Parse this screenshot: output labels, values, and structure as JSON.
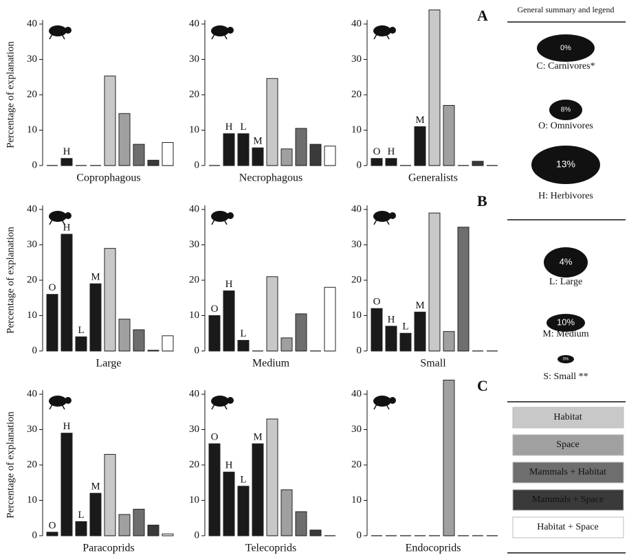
{
  "chart_data": [
    {
      "type": "bar",
      "title": "Coprophagous",
      "ylabel": "Percentage of explanation",
      "categories": [
        null,
        "H",
        null,
        null,
        null,
        null,
        null,
        null,
        null
      ],
      "values": [
        0,
        2,
        0,
        0,
        25.3,
        14.7,
        6,
        1.5,
        6.5
      ],
      "colors": [
        "#1a1a1a",
        "#1a1a1a",
        "#1a1a1a",
        "#1a1a1a",
        "#c8c8c8",
        "#a0a0a0",
        "#6e6e6e",
        "#3a3a3a",
        "#ffffff"
      ],
      "ylim": [
        0,
        45
      ],
      "yticks": [
        0,
        10,
        20,
        30,
        40
      ]
    },
    {
      "type": "bar",
      "title": "Necrophagous",
      "categories": [
        null,
        "H",
        "L",
        "M",
        null,
        null,
        null,
        null,
        null
      ],
      "values": [
        0,
        9,
        9,
        5,
        24.6,
        4.7,
        10.5,
        6,
        5.5
      ],
      "colors": [
        "#1a1a1a",
        "#1a1a1a",
        "#1a1a1a",
        "#1a1a1a",
        "#c8c8c8",
        "#a0a0a0",
        "#6e6e6e",
        "#3a3a3a",
        "#ffffff"
      ],
      "ylim": [
        0,
        45
      ],
      "yticks": [
        0,
        10,
        20,
        30,
        40
      ]
    },
    {
      "type": "bar",
      "title": "Generalists",
      "panel_label": "A",
      "categories": [
        "O",
        "H",
        null,
        "M",
        null,
        null,
        null,
        null,
        null
      ],
      "values": [
        2,
        2,
        0,
        11,
        44,
        17,
        0,
        1.2,
        0
      ],
      "colors": [
        "#1a1a1a",
        "#1a1a1a",
        "#1a1a1a",
        "#1a1a1a",
        "#c8c8c8",
        "#a0a0a0",
        "#6e6e6e",
        "#3a3a3a",
        "#ffffff"
      ],
      "ylim": [
        0,
        45
      ],
      "yticks": [
        0,
        10,
        20,
        30,
        40
      ]
    },
    {
      "type": "bar",
      "title": "Large",
      "ylabel": "Percentage of explanation",
      "categories": [
        "O",
        "H",
        "L",
        "M",
        null,
        null,
        null,
        null,
        null
      ],
      "values": [
        16,
        33,
        4,
        19,
        29,
        9,
        6,
        0.2,
        4.3
      ],
      "colors": [
        "#1a1a1a",
        "#1a1a1a",
        "#1a1a1a",
        "#1a1a1a",
        "#c8c8c8",
        "#a0a0a0",
        "#6e6e6e",
        "#3a3a3a",
        "#ffffff"
      ],
      "ylim": [
        0,
        45
      ],
      "yticks": [
        0,
        10,
        20,
        30,
        40
      ]
    },
    {
      "type": "bar",
      "title": "Medium",
      "categories": [
        "O",
        "H",
        "L",
        null,
        null,
        null,
        null,
        null,
        null
      ],
      "values": [
        10,
        17,
        3,
        0,
        21,
        3.7,
        10.5,
        0,
        18
      ],
      "colors": [
        "#1a1a1a",
        "#1a1a1a",
        "#1a1a1a",
        "#1a1a1a",
        "#c8c8c8",
        "#a0a0a0",
        "#6e6e6e",
        "#3a3a3a",
        "#ffffff"
      ],
      "ylim": [
        0,
        45
      ],
      "yticks": [
        0,
        10,
        20,
        30,
        40
      ]
    },
    {
      "type": "bar",
      "title": "Small",
      "panel_label": "B",
      "categories": [
        "O",
        "H",
        "L",
        "M",
        null,
        null,
        null,
        null,
        null
      ],
      "values": [
        12,
        7,
        5,
        11,
        39,
        5.5,
        35,
        0,
        0
      ],
      "colors": [
        "#1a1a1a",
        "#1a1a1a",
        "#1a1a1a",
        "#1a1a1a",
        "#c8c8c8",
        "#a0a0a0",
        "#6e6e6e",
        "#3a3a3a",
        "#ffffff"
      ],
      "ylim": [
        0,
        45
      ],
      "yticks": [
        0,
        10,
        20,
        30,
        40
      ]
    },
    {
      "type": "bar",
      "title": "Paracoprids",
      "ylabel": "Percentage of explanation",
      "categories": [
        "O",
        "H",
        "L",
        "M",
        null,
        null,
        null,
        null,
        null
      ],
      "values": [
        1,
        29,
        4,
        12,
        23,
        6,
        7.5,
        3,
        0.5
      ],
      "colors": [
        "#1a1a1a",
        "#1a1a1a",
        "#1a1a1a",
        "#1a1a1a",
        "#c8c8c8",
        "#a0a0a0",
        "#6e6e6e",
        "#3a3a3a",
        "#ffffff"
      ],
      "ylim": [
        0,
        45
      ],
      "yticks": [
        0,
        10,
        20,
        30,
        40
      ]
    },
    {
      "type": "bar",
      "title": "Telecoprids",
      "categories": [
        "O",
        "H",
        "L",
        "M",
        null,
        null,
        null,
        null,
        null
      ],
      "values": [
        26,
        18,
        14,
        26,
        33,
        13,
        6.8,
        1.6,
        0
      ],
      "colors": [
        "#1a1a1a",
        "#1a1a1a",
        "#1a1a1a",
        "#1a1a1a",
        "#c8c8c8",
        "#a0a0a0",
        "#6e6e6e",
        "#3a3a3a",
        "#ffffff"
      ],
      "ylim": [
        0,
        45
      ],
      "yticks": [
        0,
        10,
        20,
        30,
        40
      ]
    },
    {
      "type": "bar",
      "title": "Endocoprids",
      "panel_label": "C",
      "categories": [
        null,
        null,
        null,
        null,
        null,
        null,
        null,
        null,
        null
      ],
      "values": [
        0,
        0,
        0,
        0,
        0,
        44,
        0,
        0,
        0
      ],
      "colors": [
        "#1a1a1a",
        "#1a1a1a",
        "#1a1a1a",
        "#1a1a1a",
        "#c8c8c8",
        "#a0a0a0",
        "#6e6e6e",
        "#3a3a3a",
        "#ffffff"
      ],
      "ylim": [
        0,
        45
      ],
      "yticks": [
        0,
        10,
        20,
        30,
        40
      ]
    }
  ],
  "summary": {
    "title": "General summary and legend",
    "groups": [
      {
        "label": "C: Carnivores*",
        "percent": "0%"
      },
      {
        "label": "O: Omnivores",
        "percent": "8%"
      },
      {
        "label": "H: Herbivores",
        "percent": "13%"
      },
      {
        "label": "L: Large",
        "percent": "4%"
      },
      {
        "label": "M: Medium",
        "percent": "10%"
      },
      {
        "label": "S: Small **",
        "percent": "0%"
      }
    ]
  },
  "legend": [
    {
      "name": "Habitat",
      "color": "#c8c8c8"
    },
    {
      "name": "Space",
      "color": "#a0a0a0"
    },
    {
      "name": "Mammals + Habitat",
      "color": "#6e6e6e"
    },
    {
      "name": "Mammals + Space",
      "color": "#3a3a3a"
    },
    {
      "name": "Habitat + Space",
      "color": "#ffffff"
    }
  ]
}
